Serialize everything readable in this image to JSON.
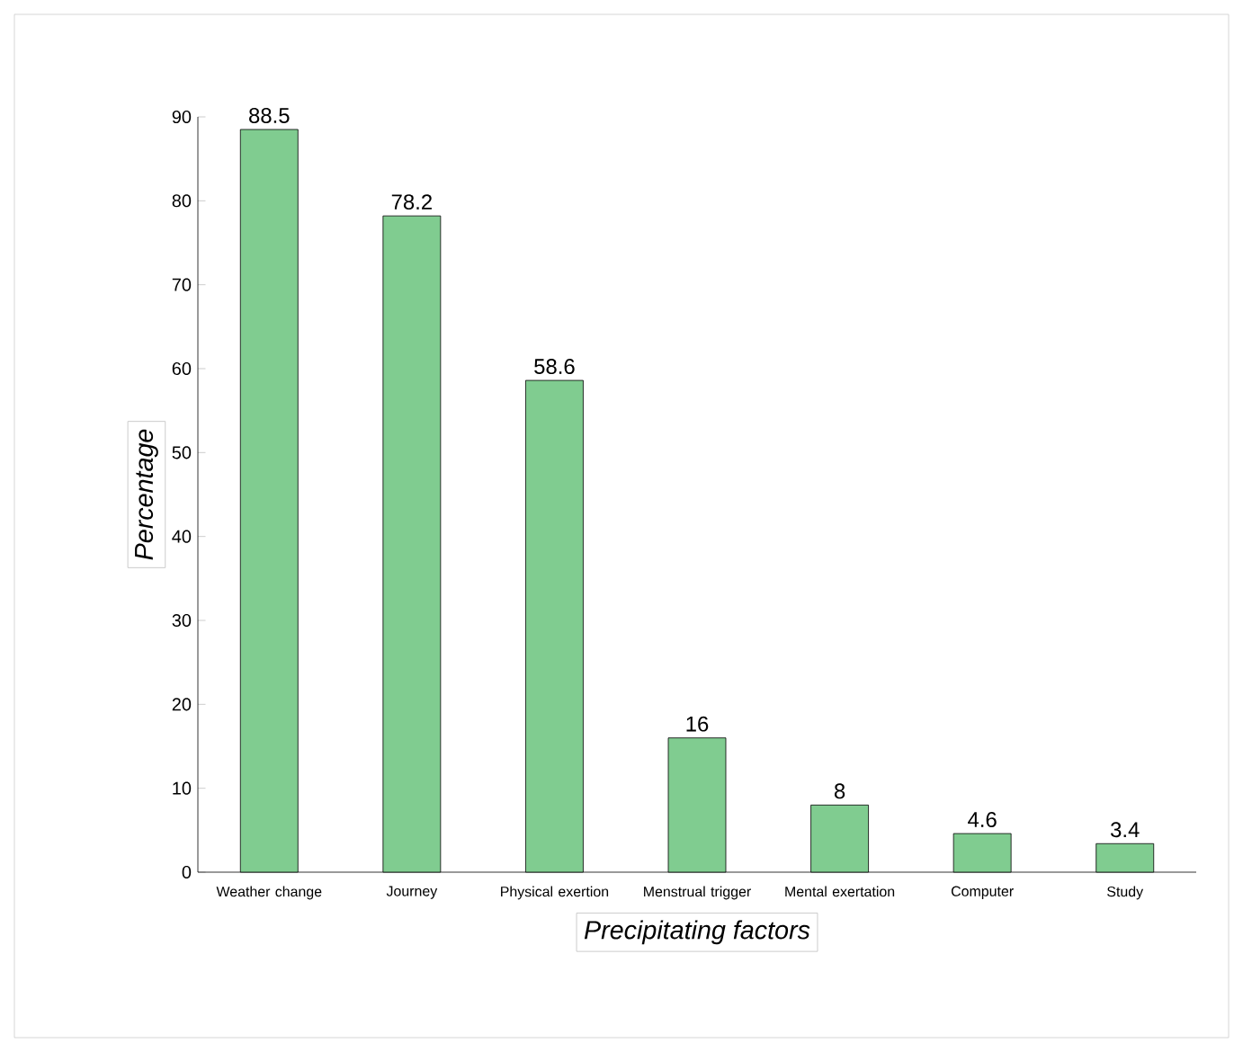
{
  "chart_data": {
    "type": "bar",
    "xlabel": "Precipitating factors",
    "ylabel": "Percentage",
    "categories": [
      "Weather change",
      "Journey",
      "Physical exertion",
      "Menstrual trigger",
      "Mental exertation",
      "Computer",
      "Study"
    ],
    "values": [
      88.5,
      78.2,
      58.6,
      16,
      8,
      4.6,
      3.4
    ],
    "color": "#80cc90",
    "ylim": [
      0,
      90
    ],
    "yticks": [
      0,
      10,
      20,
      30,
      40,
      50,
      60,
      70,
      80,
      90
    ],
    "data_labels": true
  }
}
